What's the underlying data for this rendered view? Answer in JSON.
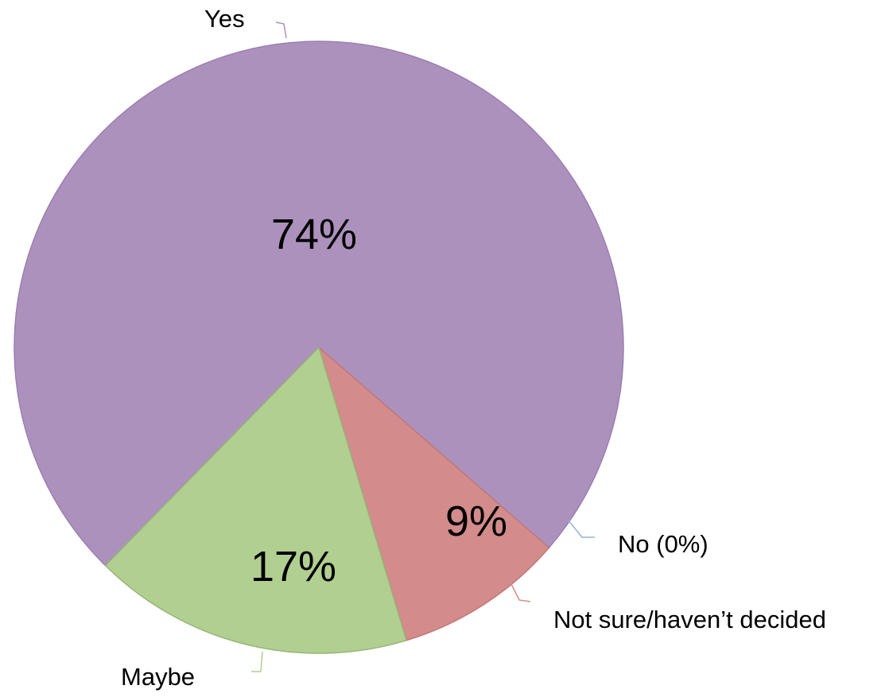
{
  "chart_data": {
    "type": "pie",
    "slices": [
      {
        "label": "Yes",
        "value": 74,
        "value_label": "74%",
        "color": "#ad91bd",
        "edge": "#9b7fb0",
        "leader": "#ad91bd"
      },
      {
        "label": "No (0%)",
        "value": 0,
        "value_label": "",
        "color": "#93b3d6",
        "edge": "#93b3d6",
        "leader": "#93b3d6"
      },
      {
        "label": "Not sure/haven’t decided",
        "value": 9,
        "value_label": "9%",
        "color": "#d38b8b",
        "edge": "#c07878",
        "leader": "#d38b8b"
      },
      {
        "label": "Maybe",
        "value": 17,
        "value_label": "17%",
        "color": "#b1cf91",
        "edge": "#96b576",
        "leader": "#b1cf91"
      }
    ],
    "legend": "none",
    "data_labels": "inside",
    "category_labels": "outside"
  }
}
